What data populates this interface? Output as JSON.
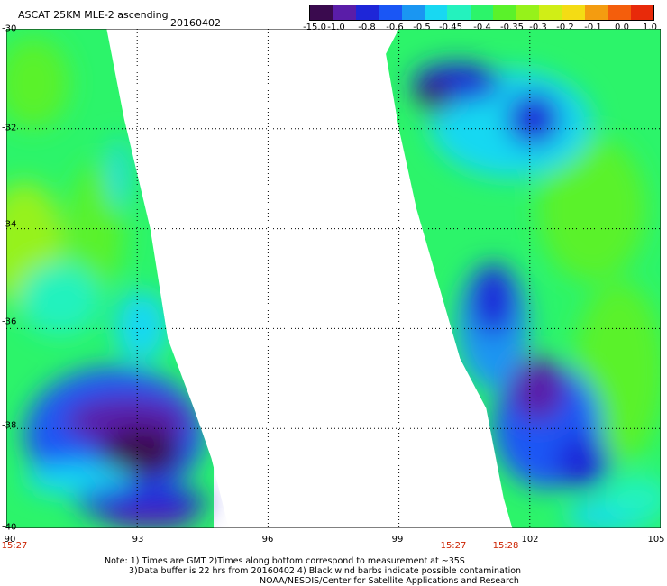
{
  "header": {
    "title": "ASCAT 25KM MLE-2 ascending",
    "date": "20160402"
  },
  "colorbar": {
    "colors": [
      "#3a0a4e",
      "#5a1da8",
      "#1e26d8",
      "#1a56f5",
      "#1a96f2",
      "#18d8f2",
      "#24f2be",
      "#2cf46a",
      "#5af22a",
      "#96f21a",
      "#d0ee16",
      "#f4dc14",
      "#f49c10",
      "#f45e0c",
      "#e82a0a"
    ],
    "labels": [
      "-15.0",
      "-1.0",
      "-0.8",
      "-0.6",
      "-0.5",
      "-0.45",
      "-0.4",
      "-0.35",
      "-0.3",
      "-0.2",
      "-0.1",
      "0.0",
      "1.0"
    ]
  },
  "map": {
    "lon_range": [
      90,
      105
    ],
    "lat_range": [
      -40,
      -30
    ],
    "lon_ticks": [
      "90",
      "93",
      "96",
      "99",
      "102",
      "105"
    ],
    "lat_ticks": [
      "-30",
      "-32",
      "-34",
      "-36",
      "-38",
      "-40"
    ],
    "gridlines": true,
    "time_labels": [
      "15:27",
      "15:27",
      "15:28"
    ],
    "swaths": [
      {
        "name": "west-swath",
        "polygon_lonlat": [
          [
            90.0,
            -30.0
          ],
          [
            92.3,
            -30.0
          ],
          [
            92.7,
            -31.8
          ],
          [
            93.3,
            -34.0
          ],
          [
            93.7,
            -36.2
          ],
          [
            94.3,
            -37.6
          ],
          [
            94.7,
            -38.6
          ],
          [
            95.1,
            -40.0
          ],
          [
            90.0,
            -40.0
          ]
        ]
      },
      {
        "name": "east-swath",
        "polygon_lonlat": [
          [
            99.0,
            -30.0
          ],
          [
            105.0,
            -30.0
          ],
          [
            105.0,
            -40.0
          ],
          [
            101.6,
            -40.0
          ],
          [
            101.4,
            -39.4
          ],
          [
            101.0,
            -37.6
          ],
          [
            100.4,
            -36.6
          ],
          [
            99.9,
            -35.1
          ],
          [
            99.4,
            -33.6
          ],
          [
            99.0,
            -32.0
          ],
          [
            98.7,
            -30.5
          ]
        ]
      }
    ]
  },
  "notes": {
    "line1": "Note: 1) Times are GMT 2)Times along bottom correspond to measurement at ~35S",
    "line2": "3)Data buffer is 22 hrs from 20160402 4) Black wind barbs indicate possible contamination",
    "line3": "NOAA/NESDIS/Center for Satellite Applications and Research"
  }
}
